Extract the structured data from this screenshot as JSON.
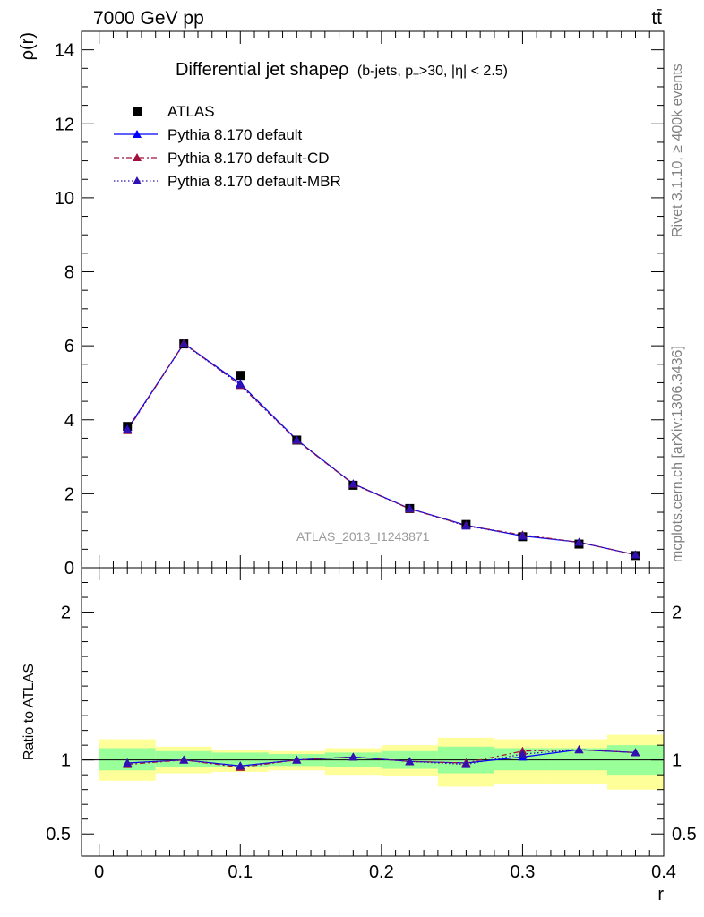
{
  "header": {
    "energy_label": "7000 GeV pp",
    "process_label": "tt̄"
  },
  "side_labels": {
    "rivet": "Rivet 3.1.10, ≥ 400k events",
    "mcplots": "mcplots.cern.ch [arXiv:1306.3436]"
  },
  "chart_data": [
    {
      "type": "line",
      "title_main": "Differential jet shapeρ",
      "title_sub_a": "(b-jets, p",
      "title_sub_sub": "T",
      "title_sub_b": ">30, |η| < 2.5)",
      "watermark": "ATLAS_2013_I1243871",
      "xlabel": "",
      "ylabel": "ρ(r)",
      "xlim": [
        -0.0125,
        0.4
      ],
      "ylim": [
        0,
        14.5
      ],
      "y_ticks": [
        0,
        2,
        4,
        6,
        8,
        10,
        12,
        14
      ],
      "y_tick_labels": [
        "0",
        "2",
        "4",
        "6",
        "8",
        "10",
        "12",
        "14"
      ],
      "legend_position": "top-left",
      "x": [
        0.02,
        0.06,
        0.1,
        0.14,
        0.18,
        0.22,
        0.26,
        0.3,
        0.34,
        0.38
      ],
      "series": [
        {
          "name": "ATLAS",
          "color": "#000000",
          "marker": "square",
          "values": [
            3.82,
            6.05,
            5.2,
            3.45,
            2.23,
            1.6,
            1.17,
            0.84,
            0.64,
            0.33
          ]
        },
        {
          "name": "Pythia 8.170 default",
          "color": "#0000ff",
          "marker": "triangle",
          "line": "solid",
          "values": [
            3.75,
            6.06,
            4.98,
            3.46,
            2.27,
            1.6,
            1.15,
            0.86,
            0.69,
            0.35
          ]
        },
        {
          "name": "Pythia 8.170 default-CD",
          "color": "#a0103a",
          "marker": "triangle",
          "line": "dashdot",
          "values": [
            3.71,
            6.07,
            4.93,
            3.44,
            2.26,
            1.59,
            1.14,
            0.89,
            0.69,
            0.35
          ]
        },
        {
          "name": "Pythia 8.170 default-MBR",
          "color": "#3010b0",
          "marker": "triangle",
          "line": "dotted",
          "values": [
            3.73,
            6.05,
            4.95,
            3.45,
            2.27,
            1.6,
            1.13,
            0.87,
            0.69,
            0.35
          ]
        }
      ]
    },
    {
      "type": "line",
      "xlabel": "r",
      "ylabel": "Ratio to ATLAS",
      "ylim": [
        0.35,
        2.3
      ],
      "x_ticks": [
        0,
        0.1,
        0.2,
        0.3,
        0.4
      ],
      "x_tick_labels": [
        "0",
        "0.1",
        "0.2",
        "0.3",
        "0.4"
      ],
      "y_ticks": [
        0.5,
        1,
        2
      ],
      "y_tick_labels": [
        "0.5",
        "1",
        "2"
      ],
      "band_edges": [
        0.0,
        0.04,
        0.08,
        0.12,
        0.16,
        0.2,
        0.24,
        0.28,
        0.32,
        0.36,
        0.4
      ],
      "band_inner": [
        [
          0.93,
          1.08
        ],
        [
          0.95,
          1.06
        ],
        [
          0.95,
          1.05
        ],
        [
          0.96,
          1.04
        ],
        [
          0.95,
          1.05
        ],
        [
          0.94,
          1.06
        ],
        [
          0.91,
          1.09
        ],
        [
          0.93,
          1.08
        ],
        [
          0.93,
          1.08
        ],
        [
          0.9,
          1.1
        ]
      ],
      "band_outer": [
        [
          0.86,
          1.14
        ],
        [
          0.91,
          1.09
        ],
        [
          0.92,
          1.07
        ],
        [
          0.93,
          1.06
        ],
        [
          0.9,
          1.08
        ],
        [
          0.89,
          1.1
        ],
        [
          0.82,
          1.15
        ],
        [
          0.84,
          1.14
        ],
        [
          0.84,
          1.14
        ],
        [
          0.8,
          1.17
        ]
      ],
      "x": [
        0.02,
        0.06,
        0.1,
        0.14,
        0.18,
        0.22,
        0.26,
        0.3,
        0.34,
        0.38
      ],
      "series": [
        {
          "name": "Pythia 8.170 default",
          "color": "#0000ff",
          "line": "solid",
          "values": [
            0.98,
            1.0,
            0.96,
            1.0,
            1.02,
            0.99,
            0.98,
            1.02,
            1.07,
            1.05
          ]
        },
        {
          "name": "Pythia 8.170 default-CD",
          "color": "#a0103a",
          "line": "dashdot",
          "values": [
            0.97,
            1.0,
            0.95,
            1.0,
            1.02,
            0.99,
            0.98,
            1.06,
            1.07,
            1.05
          ]
        },
        {
          "name": "Pythia 8.170 default-MBR",
          "color": "#3010b0",
          "line": "dotted",
          "values": [
            0.98,
            1.0,
            0.96,
            1.0,
            1.02,
            0.99,
            0.97,
            1.04,
            1.07,
            1.05
          ]
        }
      ]
    }
  ],
  "colors": {
    "band_inner": "#99ff99",
    "band_outer": "#ffff99"
  }
}
